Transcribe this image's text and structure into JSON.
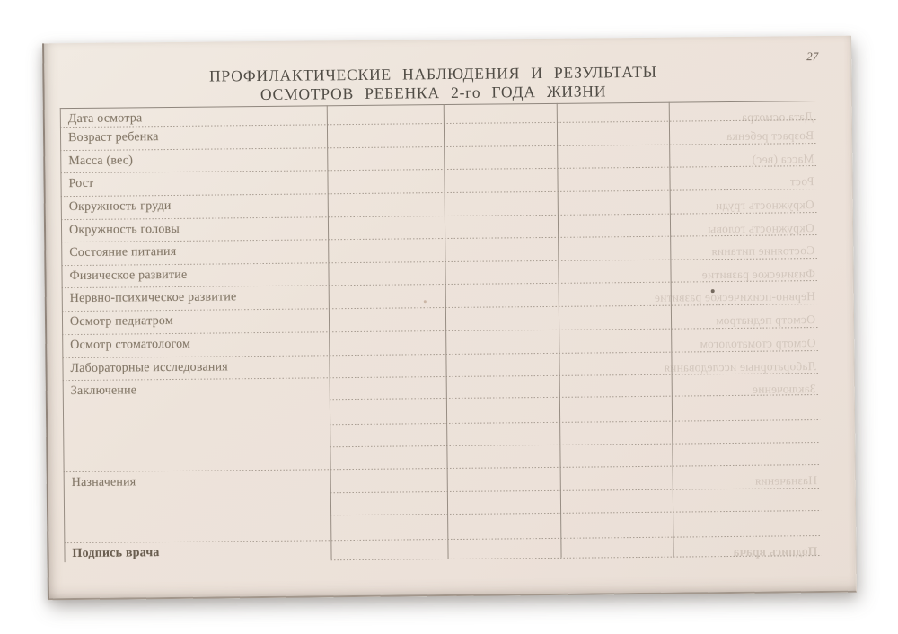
{
  "page_number": "27",
  "title": {
    "line1": "ПРОФИЛАКТИЧЕСКИЕ  НАБЛЮДЕНИЯ  И  РЕЗУЛЬТАТЫ",
    "line2": "ОСМОТРОВ  РЕБЕНКА  2-го  ГОДА  ЖИЗНИ"
  },
  "table": {
    "row_labels": [
      "Дата осмотра",
      "Возраст ребенка",
      "Масса (вес)",
      "Рост",
      "Окружность груди",
      "Окружность головы",
      "Состояние питания",
      "Физическое развитие",
      "Нервно-психическое развитие",
      "Осмотр педиатром",
      "Осмотр стоматологом",
      "Лабораторные исследования",
      "Заключение",
      "Назначения",
      "Подпись врача"
    ],
    "data_columns": 4,
    "empty_cell_value": ""
  },
  "colors": {
    "paper": "#ece2d9",
    "title_ink": "#504c45",
    "label_ink": "#847868",
    "rule_line": "#978d83",
    "dotted_line": "#a89d92",
    "bleedthrough_ink": "#b9aca0"
  }
}
